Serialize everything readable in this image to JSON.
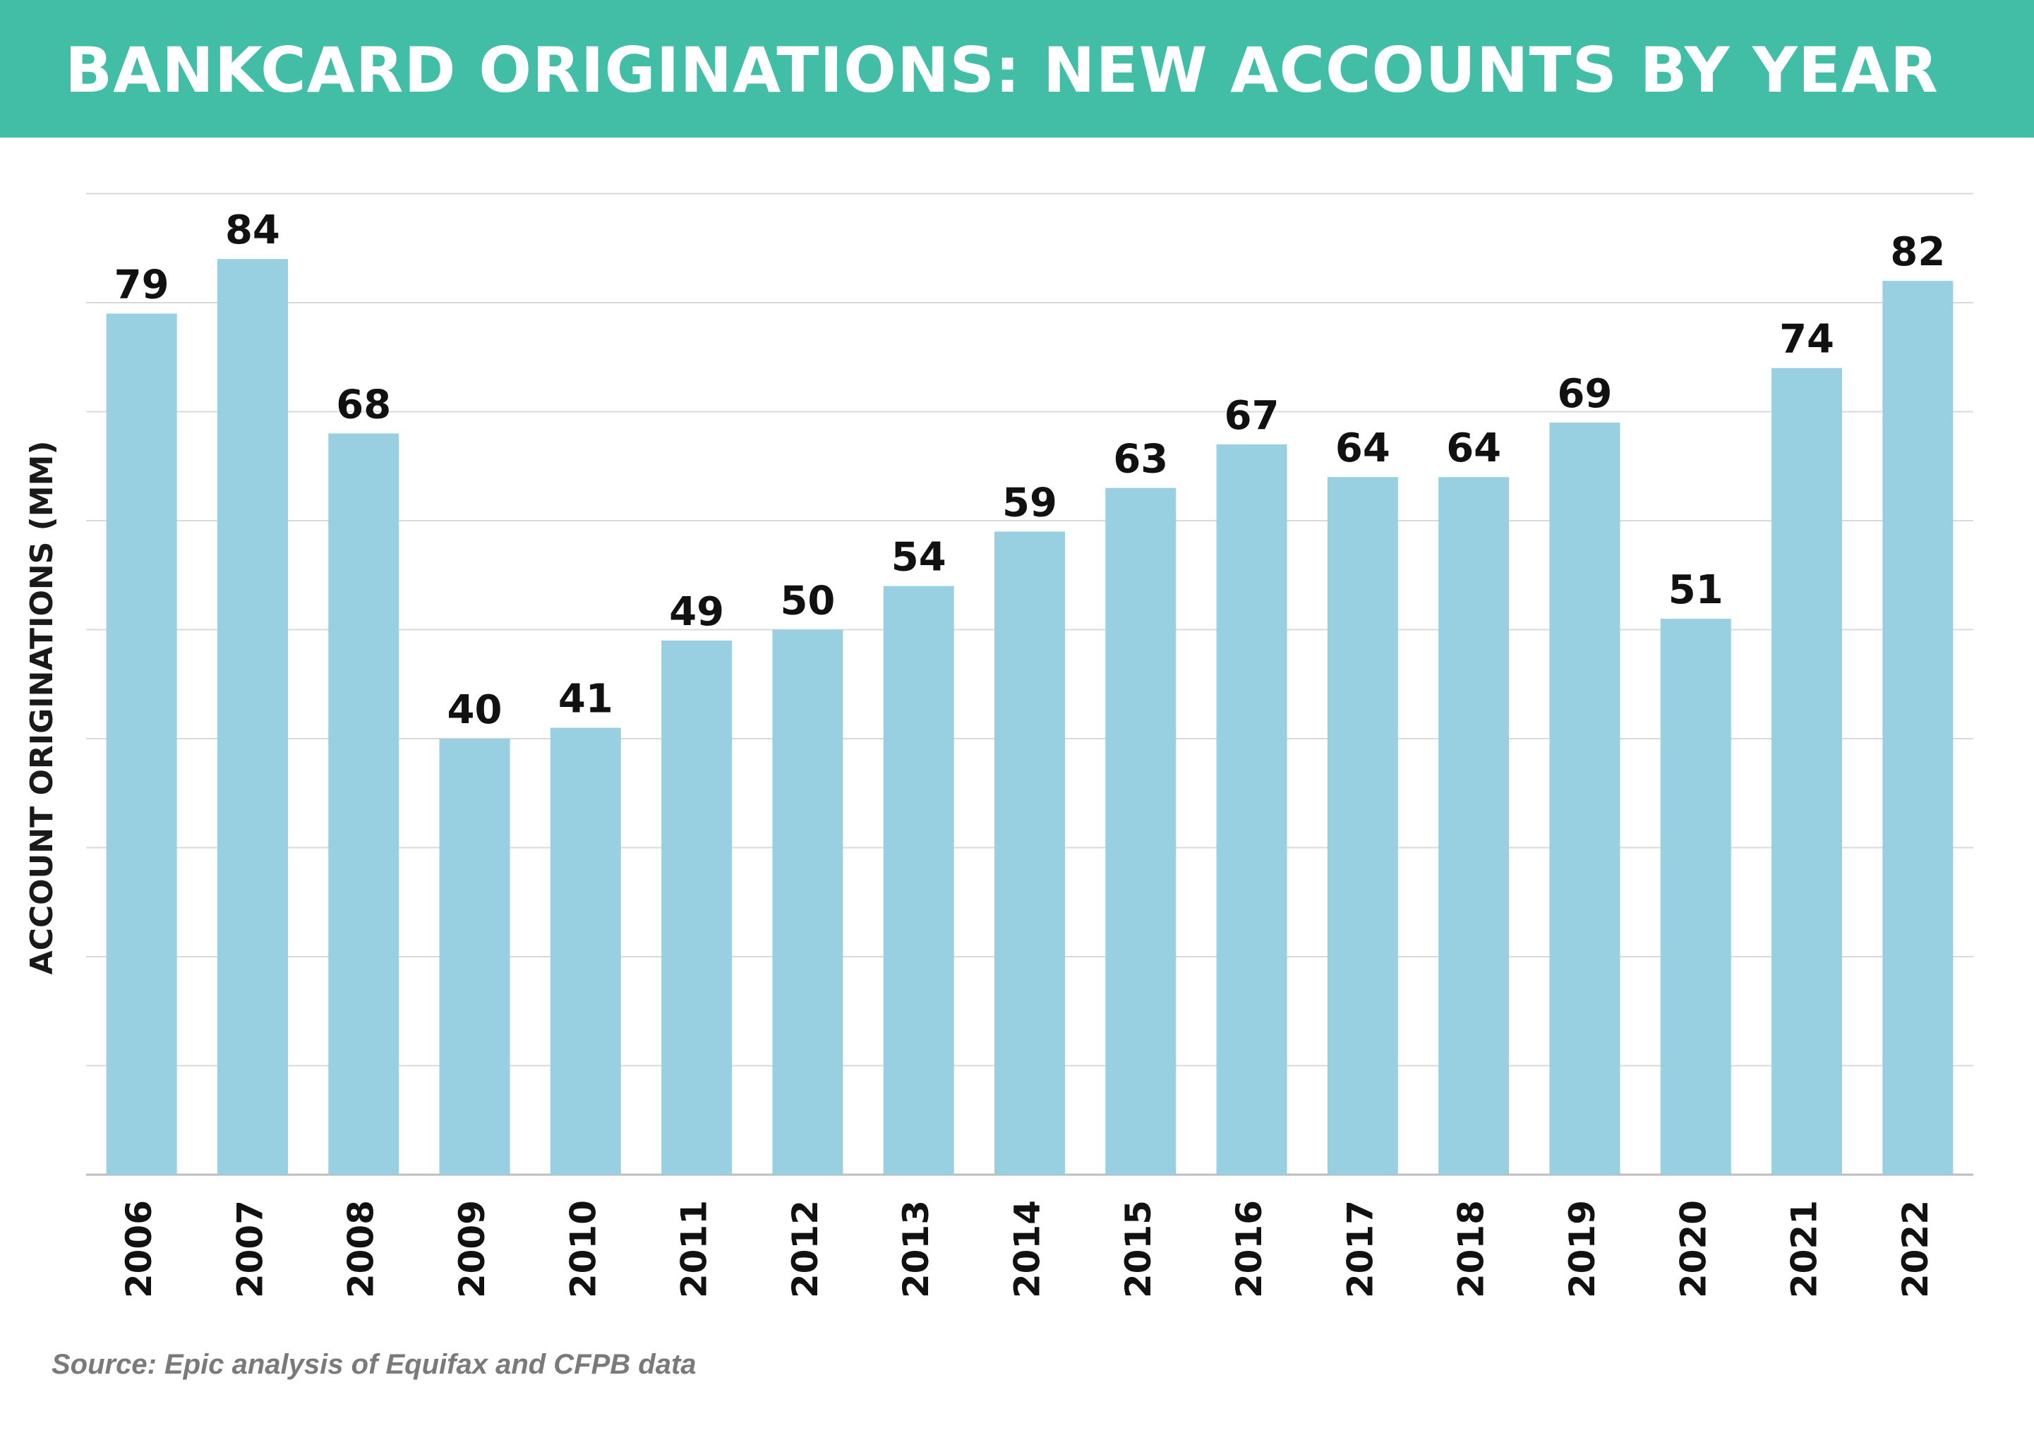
{
  "header": {
    "title": "BANKCARD ORIGINATIONS: NEW ACCOUNTS BY YEAR",
    "color": "#43bea6"
  },
  "footer": {
    "source": "Source: Epic analysis of Equifax and CFPB data"
  },
  "chart_data": {
    "type": "bar",
    "title": "BANKCARD ORIGINATIONS: NEW ACCOUNTS BY YEAR",
    "xlabel": "",
    "ylabel": "ACCOUNT ORIGINATIONS (MM)",
    "categories": [
      "2006",
      "2007",
      "2008",
      "2009",
      "2010",
      "2011",
      "2012",
      "2013",
      "2014",
      "2015",
      "2016",
      "2017",
      "2018",
      "2019",
      "2020",
      "2021",
      "2022"
    ],
    "values": [
      79,
      84,
      68,
      40,
      41,
      49,
      50,
      54,
      59,
      63,
      67,
      64,
      64,
      69,
      51,
      74,
      82
    ],
    "data_labels": [
      "79",
      "84",
      "68",
      "40",
      "41",
      "49",
      "50",
      "54",
      "59",
      "63",
      "67",
      "64",
      "64",
      "69",
      "51",
      "74",
      "82"
    ],
    "ylim": [
      0,
      90
    ],
    "y_gridline_step": 10,
    "grid": true,
    "bar_color": "#98d0e2",
    "legend": "none"
  }
}
